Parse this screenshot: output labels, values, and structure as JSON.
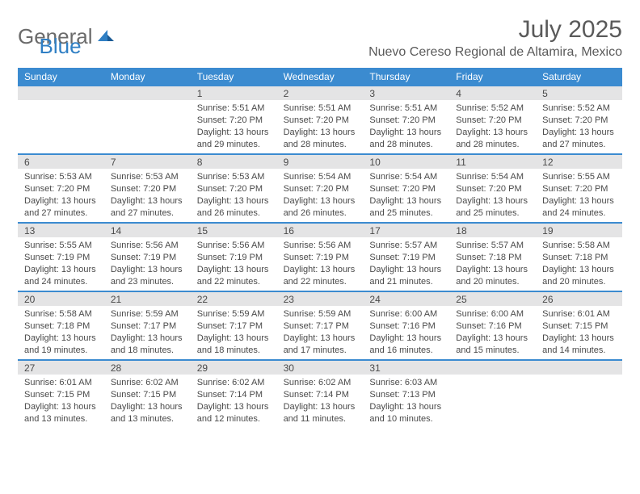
{
  "logo": {
    "word1": "General",
    "word2": "Blue"
  },
  "header": {
    "month_title": "July 2025",
    "location": "Nuevo Cereso Regional de Altamira, Mexico"
  },
  "colors": {
    "accent_blue": "#3b8bd0",
    "band_gray": "#e4e4e5",
    "text": "#4a4a4a",
    "logo_gray": "#6b6b6b",
    "logo_blue": "#2f7fc4"
  },
  "weekdays": [
    "Sunday",
    "Monday",
    "Tuesday",
    "Wednesday",
    "Thursday",
    "Friday",
    "Saturday"
  ],
  "weeks": [
    [
      {
        "num": "",
        "lines": []
      },
      {
        "num": "",
        "lines": []
      },
      {
        "num": "1",
        "lines": [
          "Sunrise: 5:51 AM",
          "Sunset: 7:20 PM",
          "Daylight: 13 hours",
          "and 29 minutes."
        ]
      },
      {
        "num": "2",
        "lines": [
          "Sunrise: 5:51 AM",
          "Sunset: 7:20 PM",
          "Daylight: 13 hours",
          "and 28 minutes."
        ]
      },
      {
        "num": "3",
        "lines": [
          "Sunrise: 5:51 AM",
          "Sunset: 7:20 PM",
          "Daylight: 13 hours",
          "and 28 minutes."
        ]
      },
      {
        "num": "4",
        "lines": [
          "Sunrise: 5:52 AM",
          "Sunset: 7:20 PM",
          "Daylight: 13 hours",
          "and 28 minutes."
        ]
      },
      {
        "num": "5",
        "lines": [
          "Sunrise: 5:52 AM",
          "Sunset: 7:20 PM",
          "Daylight: 13 hours",
          "and 27 minutes."
        ]
      }
    ],
    [
      {
        "num": "6",
        "lines": [
          "Sunrise: 5:53 AM",
          "Sunset: 7:20 PM",
          "Daylight: 13 hours",
          "and 27 minutes."
        ]
      },
      {
        "num": "7",
        "lines": [
          "Sunrise: 5:53 AM",
          "Sunset: 7:20 PM",
          "Daylight: 13 hours",
          "and 27 minutes."
        ]
      },
      {
        "num": "8",
        "lines": [
          "Sunrise: 5:53 AM",
          "Sunset: 7:20 PM",
          "Daylight: 13 hours",
          "and 26 minutes."
        ]
      },
      {
        "num": "9",
        "lines": [
          "Sunrise: 5:54 AM",
          "Sunset: 7:20 PM",
          "Daylight: 13 hours",
          "and 26 minutes."
        ]
      },
      {
        "num": "10",
        "lines": [
          "Sunrise: 5:54 AM",
          "Sunset: 7:20 PM",
          "Daylight: 13 hours",
          "and 25 minutes."
        ]
      },
      {
        "num": "11",
        "lines": [
          "Sunrise: 5:54 AM",
          "Sunset: 7:20 PM",
          "Daylight: 13 hours",
          "and 25 minutes."
        ]
      },
      {
        "num": "12",
        "lines": [
          "Sunrise: 5:55 AM",
          "Sunset: 7:20 PM",
          "Daylight: 13 hours",
          "and 24 minutes."
        ]
      }
    ],
    [
      {
        "num": "13",
        "lines": [
          "Sunrise: 5:55 AM",
          "Sunset: 7:19 PM",
          "Daylight: 13 hours",
          "and 24 minutes."
        ]
      },
      {
        "num": "14",
        "lines": [
          "Sunrise: 5:56 AM",
          "Sunset: 7:19 PM",
          "Daylight: 13 hours",
          "and 23 minutes."
        ]
      },
      {
        "num": "15",
        "lines": [
          "Sunrise: 5:56 AM",
          "Sunset: 7:19 PM",
          "Daylight: 13 hours",
          "and 22 minutes."
        ]
      },
      {
        "num": "16",
        "lines": [
          "Sunrise: 5:56 AM",
          "Sunset: 7:19 PM",
          "Daylight: 13 hours",
          "and 22 minutes."
        ]
      },
      {
        "num": "17",
        "lines": [
          "Sunrise: 5:57 AM",
          "Sunset: 7:19 PM",
          "Daylight: 13 hours",
          "and 21 minutes."
        ]
      },
      {
        "num": "18",
        "lines": [
          "Sunrise: 5:57 AM",
          "Sunset: 7:18 PM",
          "Daylight: 13 hours",
          "and 20 minutes."
        ]
      },
      {
        "num": "19",
        "lines": [
          "Sunrise: 5:58 AM",
          "Sunset: 7:18 PM",
          "Daylight: 13 hours",
          "and 20 minutes."
        ]
      }
    ],
    [
      {
        "num": "20",
        "lines": [
          "Sunrise: 5:58 AM",
          "Sunset: 7:18 PM",
          "Daylight: 13 hours",
          "and 19 minutes."
        ]
      },
      {
        "num": "21",
        "lines": [
          "Sunrise: 5:59 AM",
          "Sunset: 7:17 PM",
          "Daylight: 13 hours",
          "and 18 minutes."
        ]
      },
      {
        "num": "22",
        "lines": [
          "Sunrise: 5:59 AM",
          "Sunset: 7:17 PM",
          "Daylight: 13 hours",
          "and 18 minutes."
        ]
      },
      {
        "num": "23",
        "lines": [
          "Sunrise: 5:59 AM",
          "Sunset: 7:17 PM",
          "Daylight: 13 hours",
          "and 17 minutes."
        ]
      },
      {
        "num": "24",
        "lines": [
          "Sunrise: 6:00 AM",
          "Sunset: 7:16 PM",
          "Daylight: 13 hours",
          "and 16 minutes."
        ]
      },
      {
        "num": "25",
        "lines": [
          "Sunrise: 6:00 AM",
          "Sunset: 7:16 PM",
          "Daylight: 13 hours",
          "and 15 minutes."
        ]
      },
      {
        "num": "26",
        "lines": [
          "Sunrise: 6:01 AM",
          "Sunset: 7:15 PM",
          "Daylight: 13 hours",
          "and 14 minutes."
        ]
      }
    ],
    [
      {
        "num": "27",
        "lines": [
          "Sunrise: 6:01 AM",
          "Sunset: 7:15 PM",
          "Daylight: 13 hours",
          "and 13 minutes."
        ]
      },
      {
        "num": "28",
        "lines": [
          "Sunrise: 6:02 AM",
          "Sunset: 7:15 PM",
          "Daylight: 13 hours",
          "and 13 minutes."
        ]
      },
      {
        "num": "29",
        "lines": [
          "Sunrise: 6:02 AM",
          "Sunset: 7:14 PM",
          "Daylight: 13 hours",
          "and 12 minutes."
        ]
      },
      {
        "num": "30",
        "lines": [
          "Sunrise: 6:02 AM",
          "Sunset: 7:14 PM",
          "Daylight: 13 hours",
          "and 11 minutes."
        ]
      },
      {
        "num": "31",
        "lines": [
          "Sunrise: 6:03 AM",
          "Sunset: 7:13 PM",
          "Daylight: 13 hours",
          "and 10 minutes."
        ]
      },
      {
        "num": "",
        "lines": []
      },
      {
        "num": "",
        "lines": []
      }
    ]
  ]
}
